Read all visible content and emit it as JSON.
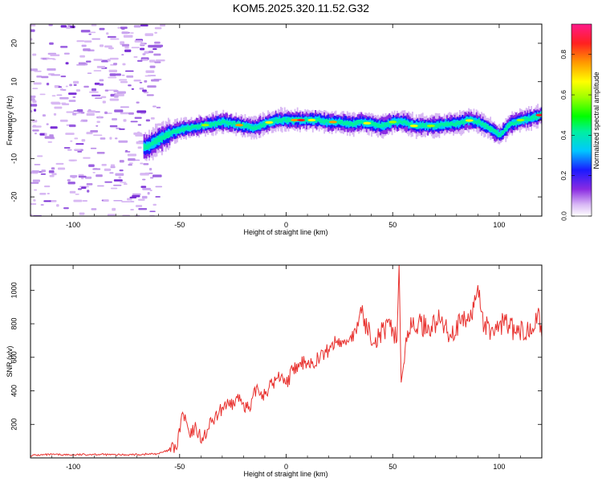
{
  "title": "KOM5.2025.320.11.52.G32",
  "chart_data": [
    {
      "type": "heatmap",
      "xlabel": "Height of straight line (km)",
      "ylabel": "Frequency (Hz)",
      "xlim": [
        -120,
        120
      ],
      "ylim": [
        -25,
        25
      ],
      "xticks": [
        -100,
        -50,
        0,
        50,
        100
      ],
      "yticks": [
        -20,
        -10,
        0,
        10,
        20
      ],
      "colorbar": {
        "label": "Normalized spectral amplitude",
        "range": [
          0.0,
          0.95
        ],
        "ticks": [
          "0.0",
          "0.2",
          "0.4",
          "0.6",
          "0.8"
        ]
      },
      "trace_center_hz": {
        "x": [
          -66,
          -60,
          -55,
          -50,
          -45,
          -40,
          -35,
          -30,
          -25,
          -20,
          -15,
          -10,
          -5,
          0,
          5,
          10,
          15,
          20,
          25,
          30,
          35,
          40,
          45,
          50,
          55,
          60,
          65,
          70,
          75,
          80,
          85,
          90,
          95,
          100,
          105,
          110,
          115,
          120
        ],
        "y": [
          -7,
          -5,
          -3.5,
          -2.5,
          -2,
          -1.5,
          -1,
          -0.5,
          -1,
          -1.5,
          -2,
          -1,
          0,
          0,
          0,
          0,
          0,
          -0.5,
          -0.5,
          -1,
          -0.5,
          -1,
          -1.5,
          -0.5,
          -0.5,
          -1.5,
          -1.5,
          -1.5,
          -1,
          -1,
          0,
          -0.5,
          -2,
          -4,
          -1,
          0,
          0.5,
          1.5
        ]
      }
    },
    {
      "type": "line",
      "xlabel": "Height of straight line (km)",
      "ylabel": "SNR (v/v)",
      "xlim": [
        -120,
        120
      ],
      "ylim": [
        0,
        1150
      ],
      "xticks": [
        -100,
        -50,
        0,
        50,
        100
      ],
      "yticks": [
        200,
        400,
        600,
        800,
        1000
      ],
      "series": [
        {
          "name": "SNR",
          "color": "#e8312e",
          "x": [
            -120,
            -110,
            -100,
            -90,
            -80,
            -70,
            -60,
            -55,
            -51,
            -49,
            -47,
            -45,
            -43,
            -41,
            -39,
            -37,
            -35,
            -32,
            -29,
            -26,
            -23,
            -20,
            -17,
            -14,
            -11,
            -8,
            -5,
            -2,
            0,
            3,
            6,
            9,
            12,
            15,
            18,
            21,
            24,
            27,
            30,
            33,
            35,
            38,
            42,
            46,
            50,
            52,
            53,
            54,
            57,
            62,
            67,
            72,
            77,
            82,
            87,
            90,
            93,
            98,
            103,
            108,
            113,
            118,
            120
          ],
          "y": [
            15,
            20,
            18,
            22,
            18,
            20,
            25,
            45,
            70,
            260,
            220,
            120,
            180,
            150,
            100,
            170,
            210,
            250,
            320,
            300,
            360,
            330,
            280,
            420,
            380,
            420,
            460,
            500,
            440,
            520,
            540,
            580,
            560,
            600,
            620,
            660,
            700,
            680,
            720,
            740,
            900,
            760,
            720,
            760,
            780,
            700,
            1150,
            450,
            760,
            800,
            780,
            820,
            740,
            800,
            840,
            1030,
            780,
            760,
            820,
            740,
            760,
            860,
            720
          ]
        }
      ]
    }
  ]
}
